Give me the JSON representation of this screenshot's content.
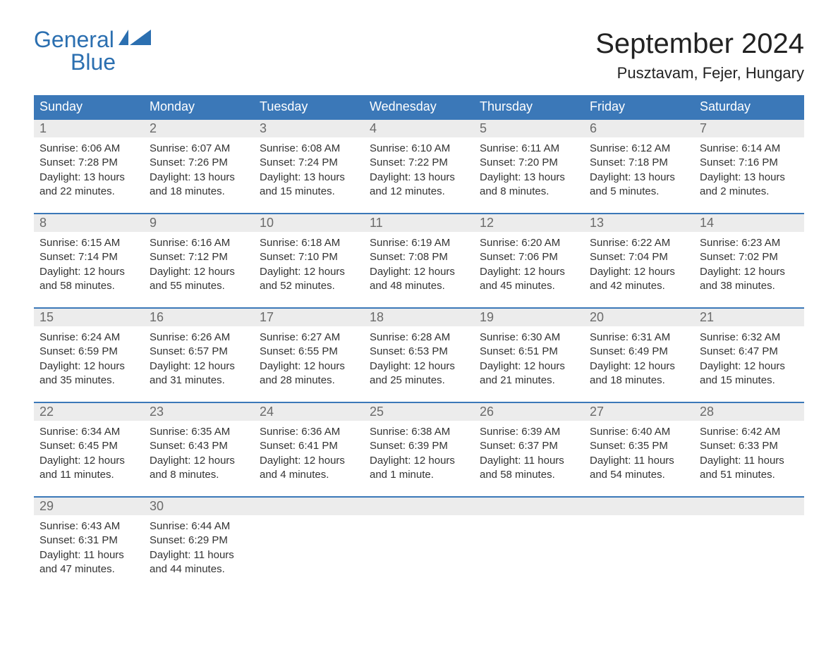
{
  "logo": {
    "general": "General",
    "blue": "Blue",
    "accent_color": "#2b6fb0"
  },
  "title": "September 2024",
  "location": "Pusztavam, Fejer, Hungary",
  "colors": {
    "header_bg": "#3b78b8",
    "header_text": "#ffffff",
    "day_number_bg": "#ececec",
    "day_number_text": "#6a6a6a",
    "row_border": "#3b78b8",
    "body_text": "#333333",
    "page_bg": "#ffffff"
  },
  "days_of_week": [
    "Sunday",
    "Monday",
    "Tuesday",
    "Wednesday",
    "Thursday",
    "Friday",
    "Saturday"
  ],
  "weeks": [
    [
      {
        "n": "1",
        "sunrise": "Sunrise: 6:06 AM",
        "sunset": "Sunset: 7:28 PM",
        "daylight": "Daylight: 13 hours and 22 minutes."
      },
      {
        "n": "2",
        "sunrise": "Sunrise: 6:07 AM",
        "sunset": "Sunset: 7:26 PM",
        "daylight": "Daylight: 13 hours and 18 minutes."
      },
      {
        "n": "3",
        "sunrise": "Sunrise: 6:08 AM",
        "sunset": "Sunset: 7:24 PM",
        "daylight": "Daylight: 13 hours and 15 minutes."
      },
      {
        "n": "4",
        "sunrise": "Sunrise: 6:10 AM",
        "sunset": "Sunset: 7:22 PM",
        "daylight": "Daylight: 13 hours and 12 minutes."
      },
      {
        "n": "5",
        "sunrise": "Sunrise: 6:11 AM",
        "sunset": "Sunset: 7:20 PM",
        "daylight": "Daylight: 13 hours and 8 minutes."
      },
      {
        "n": "6",
        "sunrise": "Sunrise: 6:12 AM",
        "sunset": "Sunset: 7:18 PM",
        "daylight": "Daylight: 13 hours and 5 minutes."
      },
      {
        "n": "7",
        "sunrise": "Sunrise: 6:14 AM",
        "sunset": "Sunset: 7:16 PM",
        "daylight": "Daylight: 13 hours and 2 minutes."
      }
    ],
    [
      {
        "n": "8",
        "sunrise": "Sunrise: 6:15 AM",
        "sunset": "Sunset: 7:14 PM",
        "daylight": "Daylight: 12 hours and 58 minutes."
      },
      {
        "n": "9",
        "sunrise": "Sunrise: 6:16 AM",
        "sunset": "Sunset: 7:12 PM",
        "daylight": "Daylight: 12 hours and 55 minutes."
      },
      {
        "n": "10",
        "sunrise": "Sunrise: 6:18 AM",
        "sunset": "Sunset: 7:10 PM",
        "daylight": "Daylight: 12 hours and 52 minutes."
      },
      {
        "n": "11",
        "sunrise": "Sunrise: 6:19 AM",
        "sunset": "Sunset: 7:08 PM",
        "daylight": "Daylight: 12 hours and 48 minutes."
      },
      {
        "n": "12",
        "sunrise": "Sunrise: 6:20 AM",
        "sunset": "Sunset: 7:06 PM",
        "daylight": "Daylight: 12 hours and 45 minutes."
      },
      {
        "n": "13",
        "sunrise": "Sunrise: 6:22 AM",
        "sunset": "Sunset: 7:04 PM",
        "daylight": "Daylight: 12 hours and 42 minutes."
      },
      {
        "n": "14",
        "sunrise": "Sunrise: 6:23 AM",
        "sunset": "Sunset: 7:02 PM",
        "daylight": "Daylight: 12 hours and 38 minutes."
      }
    ],
    [
      {
        "n": "15",
        "sunrise": "Sunrise: 6:24 AM",
        "sunset": "Sunset: 6:59 PM",
        "daylight": "Daylight: 12 hours and 35 minutes."
      },
      {
        "n": "16",
        "sunrise": "Sunrise: 6:26 AM",
        "sunset": "Sunset: 6:57 PM",
        "daylight": "Daylight: 12 hours and 31 minutes."
      },
      {
        "n": "17",
        "sunrise": "Sunrise: 6:27 AM",
        "sunset": "Sunset: 6:55 PM",
        "daylight": "Daylight: 12 hours and 28 minutes."
      },
      {
        "n": "18",
        "sunrise": "Sunrise: 6:28 AM",
        "sunset": "Sunset: 6:53 PM",
        "daylight": "Daylight: 12 hours and 25 minutes."
      },
      {
        "n": "19",
        "sunrise": "Sunrise: 6:30 AM",
        "sunset": "Sunset: 6:51 PM",
        "daylight": "Daylight: 12 hours and 21 minutes."
      },
      {
        "n": "20",
        "sunrise": "Sunrise: 6:31 AM",
        "sunset": "Sunset: 6:49 PM",
        "daylight": "Daylight: 12 hours and 18 minutes."
      },
      {
        "n": "21",
        "sunrise": "Sunrise: 6:32 AM",
        "sunset": "Sunset: 6:47 PM",
        "daylight": "Daylight: 12 hours and 15 minutes."
      }
    ],
    [
      {
        "n": "22",
        "sunrise": "Sunrise: 6:34 AM",
        "sunset": "Sunset: 6:45 PM",
        "daylight": "Daylight: 12 hours and 11 minutes."
      },
      {
        "n": "23",
        "sunrise": "Sunrise: 6:35 AM",
        "sunset": "Sunset: 6:43 PM",
        "daylight": "Daylight: 12 hours and 8 minutes."
      },
      {
        "n": "24",
        "sunrise": "Sunrise: 6:36 AM",
        "sunset": "Sunset: 6:41 PM",
        "daylight": "Daylight: 12 hours and 4 minutes."
      },
      {
        "n": "25",
        "sunrise": "Sunrise: 6:38 AM",
        "sunset": "Sunset: 6:39 PM",
        "daylight": "Daylight: 12 hours and 1 minute."
      },
      {
        "n": "26",
        "sunrise": "Sunrise: 6:39 AM",
        "sunset": "Sunset: 6:37 PM",
        "daylight": "Daylight: 11 hours and 58 minutes."
      },
      {
        "n": "27",
        "sunrise": "Sunrise: 6:40 AM",
        "sunset": "Sunset: 6:35 PM",
        "daylight": "Daylight: 11 hours and 54 minutes."
      },
      {
        "n": "28",
        "sunrise": "Sunrise: 6:42 AM",
        "sunset": "Sunset: 6:33 PM",
        "daylight": "Daylight: 11 hours and 51 minutes."
      }
    ],
    [
      {
        "n": "29",
        "sunrise": "Sunrise: 6:43 AM",
        "sunset": "Sunset: 6:31 PM",
        "daylight": "Daylight: 11 hours and 47 minutes."
      },
      {
        "n": "30",
        "sunrise": "Sunrise: 6:44 AM",
        "sunset": "Sunset: 6:29 PM",
        "daylight": "Daylight: 11 hours and 44 minutes."
      },
      null,
      null,
      null,
      null,
      null
    ]
  ]
}
